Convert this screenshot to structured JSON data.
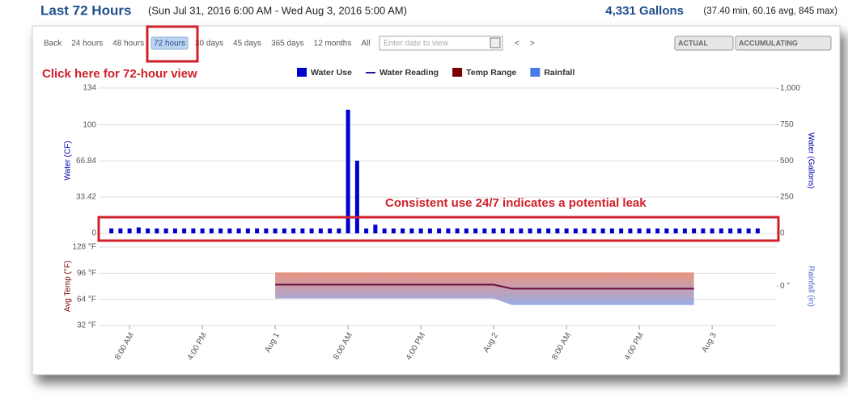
{
  "header": {
    "title": "Last 72 Hours",
    "range": "(Sun Jul 31, 2016 6:00 AM - Wed Aug 3, 2016 5:00 AM)",
    "total": "4,331 Gallons",
    "stats": "(37.40 min, 60.16 avg, 845 max)"
  },
  "toolbar": {
    "buttons": [
      "Back",
      "24 hours",
      "48 hours",
      "72 hours",
      "30 days",
      "45 days",
      "365 days",
      "12 months",
      "All"
    ],
    "selected_index": 3,
    "date_placeholder": "Enter date to view",
    "prev": "<",
    "next": ">",
    "modes": [
      "ACTUAL",
      "ACCUMULATING"
    ]
  },
  "annotations": [
    "Click here for 72-hour view",
    "Consistent use 24/7 indicates a potential leak"
  ],
  "legend": [
    {
      "name": "Water Use",
      "color": "#0000cc",
      "marker": "square"
    },
    {
      "name": "Water Reading",
      "color": "#1a1a9a",
      "marker": "line"
    },
    {
      "name": "Temp Range",
      "color": "#7a0000",
      "marker": "square"
    },
    {
      "name": "Rainfall",
      "color": "#4a7ae8",
      "marker": "square"
    }
  ],
  "chart_data": [
    {
      "type": "bar",
      "ylabel": "Water (CF)",
      "y2label": "Water (Gallons)",
      "color": "#0000cc",
      "values": [
        4.5,
        4.5,
        4.5,
        5.5,
        4.5,
        4.5,
        4.5,
        4.5,
        4.5,
        4.5,
        4.5,
        4.5,
        4.5,
        4.5,
        4.5,
        4.5,
        4.5,
        4.5,
        4.5,
        4.5,
        4.5,
        4.5,
        4.5,
        4.5,
        4.5,
        4.5,
        114,
        67,
        4.5,
        8,
        4.5,
        4.5,
        4.5,
        4.5,
        4.5,
        4.5,
        4.5,
        4.5,
        4.5,
        4.5,
        4.5,
        4.5,
        4.5,
        4.5,
        4.5,
        4.5,
        4.5,
        4.5,
        4.5,
        4.5,
        4.5,
        4.5,
        4.5,
        4.5,
        4.5,
        4.5,
        4.5,
        4.5,
        4.5,
        4.5,
        4.5,
        4.5,
        4.5,
        4.5,
        4.5,
        4.5,
        4.5,
        4.5,
        4.5,
        4.5,
        4.5,
        4.5
      ],
      "xlim": [
        -1.3,
        73.1
      ],
      "ylim": [
        0,
        134
      ],
      "yticks": [
        0,
        33.42,
        66.84,
        100,
        134
      ],
      "y2lim": [
        0,
        1002.4
      ],
      "y2ticks": [
        0,
        250,
        500,
        750,
        {
          "value": 1000,
          "label": "1,000"
        }
      ],
      "grid": true
    },
    {
      "type": "range",
      "ylabel": "Avg Temp (°F)",
      "y2label": "Rainfall (in)",
      "x": [
        18,
        42,
        44,
        64
      ],
      "high": [
        97,
        97,
        97,
        97
      ],
      "low": [
        65,
        65,
        57,
        57
      ],
      "avg": [
        82,
        82,
        77,
        77
      ],
      "high_color": "#e8806a",
      "low_color": "#8a9de0",
      "avg_color": "#6a1040",
      "xlim": [
        -1.3,
        73.1
      ],
      "ylim": [
        32,
        128
      ],
      "yticks": [
        {
          "value": 32,
          "label": "32 °F"
        },
        {
          "value": 64,
          "label": "64 °F"
        },
        {
          "value": 96,
          "label": "96 °F"
        },
        {
          "value": 128,
          "label": "128 °F"
        }
      ],
      "y2lim": [
        -1,
        1
      ],
      "y2ticks": [
        {
          "value": 0,
          "label": "0 \""
        }
      ],
      "xticks": [
        {
          "value": 2,
          "label": "8:00 AM"
        },
        {
          "value": 10,
          "label": "4:00 PM"
        },
        {
          "value": 18,
          "label": "Aug 1"
        },
        {
          "value": 26,
          "label": "8:00 AM"
        },
        {
          "value": 34,
          "label": "4:00 PM"
        },
        {
          "value": 42,
          "label": "Aug 2"
        },
        {
          "value": 50,
          "label": "8:00 AM"
        },
        {
          "value": 58,
          "label": "4:00 PM"
        },
        {
          "value": 66,
          "label": "Aug 3"
        }
      ],
      "grid": true
    }
  ]
}
